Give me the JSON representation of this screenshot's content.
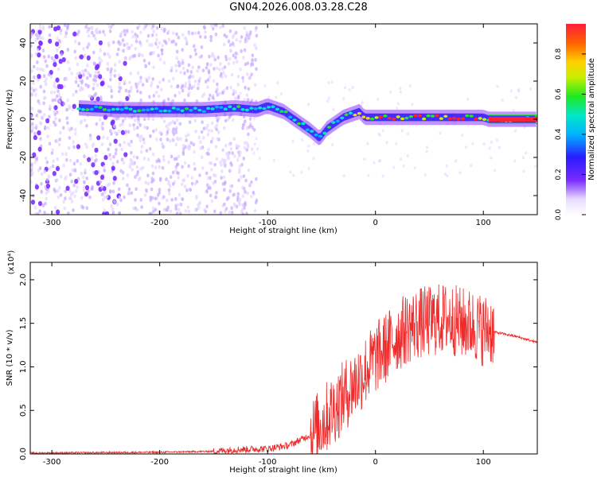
{
  "title": "GN04.2026.008.03.28.C28",
  "chart_data": [
    {
      "type": "heatmap",
      "xlabel": "Height of straight line (km)",
      "ylabel": "Frequency (Hz)",
      "xlim": [
        -320,
        150
      ],
      "ylim": [
        -50,
        50
      ],
      "xticks": [
        -300,
        -200,
        -100,
        0,
        100
      ],
      "yticks": [
        -40,
        -20,
        0,
        20,
        40
      ],
      "colorbar": {
        "label": "Normalized spectral amplitude",
        "range": [
          0.0,
          0.95
        ],
        "ticks": [
          0.0,
          0.2,
          0.4,
          0.6,
          0.8
        ]
      },
      "ridge": {
        "x": [
          -275,
          -240,
          -200,
          -160,
          -130,
          -110,
          -100,
          -85,
          -70,
          -60,
          -52,
          -45,
          -30,
          -20,
          -15,
          -10,
          0,
          20,
          60,
          100,
          105,
          150
        ],
        "y": [
          6,
          5,
          5,
          5,
          6,
          5,
          7,
          4,
          -2,
          -6,
          -10,
          -5,
          1,
          3,
          4,
          1,
          1,
          1,
          1,
          1,
          0,
          0
        ]
      },
      "noise_region_x": [
        -320,
        -130
      ]
    },
    {
      "type": "line",
      "xlabel": "Height of straight line (km)",
      "ylabel": "SNR (10 * v/v)",
      "multiplier": "(x10⁴)",
      "xlim": [
        -320,
        150
      ],
      "ylim": [
        0,
        2.2
      ],
      "xticks": [
        -300,
        -200,
        -100,
        0,
        100
      ],
      "yticks": [
        0.0,
        0.5,
        1.0,
        1.5,
        2.0
      ],
      "series": [
        {
          "color": "#ee2a2a",
          "x": [
            -320,
            -200,
            -150,
            -130,
            -100,
            -80,
            -60,
            -50,
            -40,
            -30,
            -20,
            -10,
            0,
            10,
            20,
            30,
            40,
            50,
            60,
            70,
            80,
            90,
            100,
            105,
            110,
            130,
            150
          ],
          "y": [
            0.01,
            0.02,
            0.03,
            0.05,
            0.06,
            0.1,
            0.22,
            0.35,
            0.5,
            0.65,
            0.8,
            0.95,
            1.1,
            1.22,
            1.35,
            1.45,
            1.5,
            1.52,
            1.55,
            1.55,
            1.5,
            1.48,
            1.42,
            1.45,
            1.4,
            1.35,
            1.28
          ]
        }
      ]
    }
  ]
}
